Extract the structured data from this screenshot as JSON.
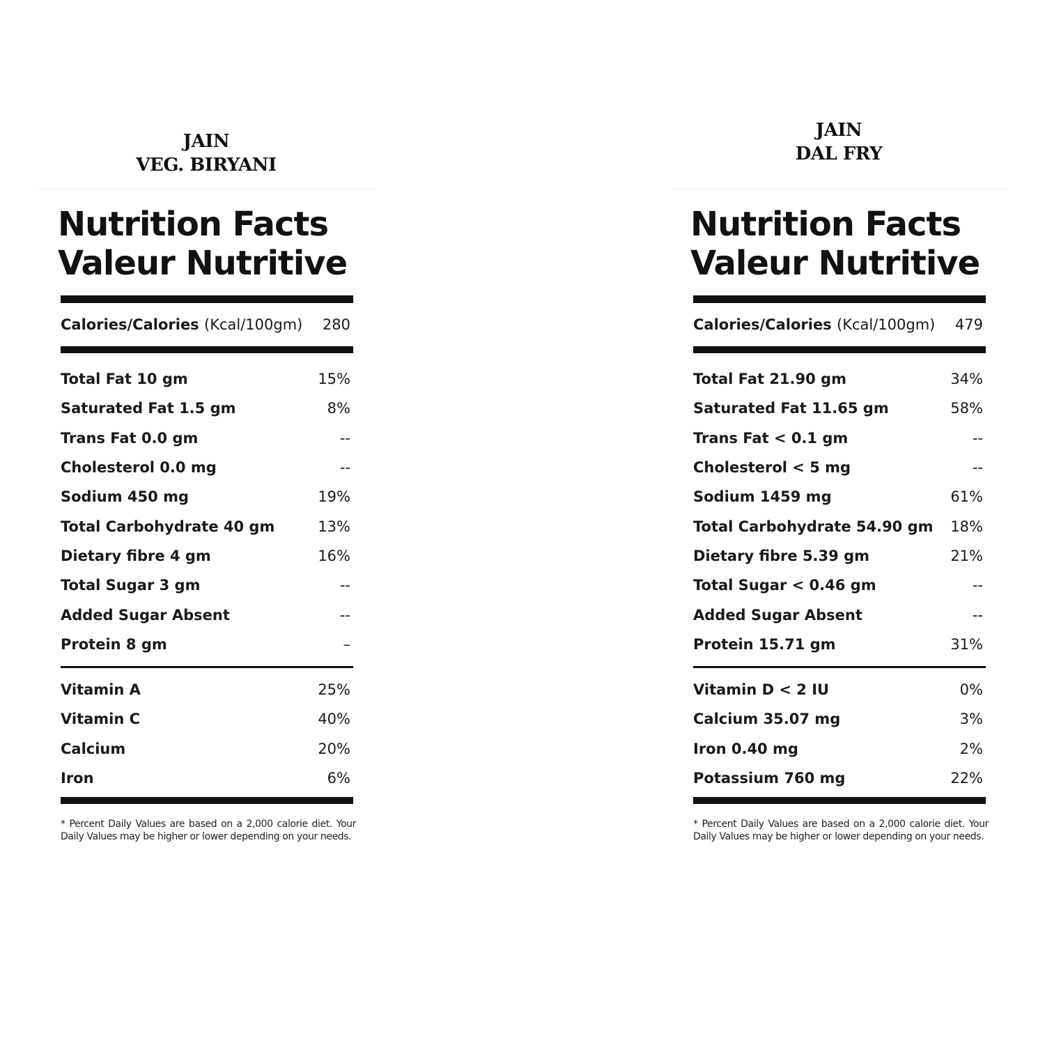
{
  "products": [
    {
      "name_line1": "JAIN",
      "name_line2": "VEG. BIRYANI",
      "title_line1": "Nutrition Facts",
      "title_line2": "Valeur Nutritive",
      "calories_label": "Calories/Calories",
      "calories_unit": "(Kcal/100gm)",
      "calories_value": "280",
      "nutrients": [
        {
          "label": "Total Fat 10 gm",
          "value": "15%"
        },
        {
          "label": "Saturated Fat 1.5 gm",
          "value": "8%"
        },
        {
          "label": "Trans Fat 0.0 gm",
          "value": "--"
        },
        {
          "label": "Cholesterol 0.0 mg",
          "value": "--"
        },
        {
          "label": "Sodium 450 mg",
          "value": "19%"
        },
        {
          "label": "Total Carbohydrate 40 gm",
          "value": "13%"
        },
        {
          "label": "Dietary fibre 4 gm",
          "value": "16%"
        },
        {
          "label": "Total Sugar 3 gm",
          "value": "--"
        },
        {
          "label": "Added Sugar Absent",
          "value": "--"
        },
        {
          "label": "Protein 8 gm",
          "value": "–"
        }
      ],
      "vitamins": [
        {
          "label": "Vitamin A",
          "value": "25%"
        },
        {
          "label": "Vitamin C",
          "value": "40%"
        },
        {
          "label": "Calcium",
          "value": "20%"
        },
        {
          "label": "Iron",
          "value": "6%"
        }
      ],
      "footnote": "* Percent Daily Values are based on a 2,000 calorie diet. Your Daily Values may be higher or lower depending on your needs."
    },
    {
      "name_line1": "JAIN",
      "name_line2": "DAL FRY",
      "title_line1": "Nutrition Facts",
      "title_line2": "Valeur Nutritive",
      "calories_label": "Calories/Calories",
      "calories_unit": "(Kcal/100gm)",
      "calories_value": "479",
      "nutrients": [
        {
          "label": "Total Fat 21.90 gm",
          "value": "34%"
        },
        {
          "label": "Saturated Fat 11.65 gm",
          "value": "58%"
        },
        {
          "label": "Trans Fat < 0.1 gm",
          "value": "--"
        },
        {
          "label": "Cholesterol < 5 mg",
          "value": "--"
        },
        {
          "label": "Sodium 1459 mg",
          "value": "61%"
        },
        {
          "label": "Total Carbohydrate 54.90 gm",
          "value": "18%"
        },
        {
          "label": "Dietary fibre 5.39 gm",
          "value": "21%"
        },
        {
          "label": "Total Sugar < 0.46 gm",
          "value": "--"
        },
        {
          "label": "Added Sugar Absent",
          "value": "--"
        },
        {
          "label": "Protein 15.71 gm",
          "value": "31%"
        }
      ],
      "vitamins": [
        {
          "label": "Vitamin D < 2 IU",
          "value": "0%"
        },
        {
          "label": "Calcium 35.07 mg",
          "value": "3%"
        },
        {
          "label": "Iron 0.40 mg",
          "value": "2%"
        },
        {
          "label": "Potassium 760 mg",
          "value": "22%"
        }
      ],
      "footnote": "* Percent Daily Values are based on a 2,000 calorie diet. Your Daily Values may be higher or lower depending on your needs."
    }
  ]
}
